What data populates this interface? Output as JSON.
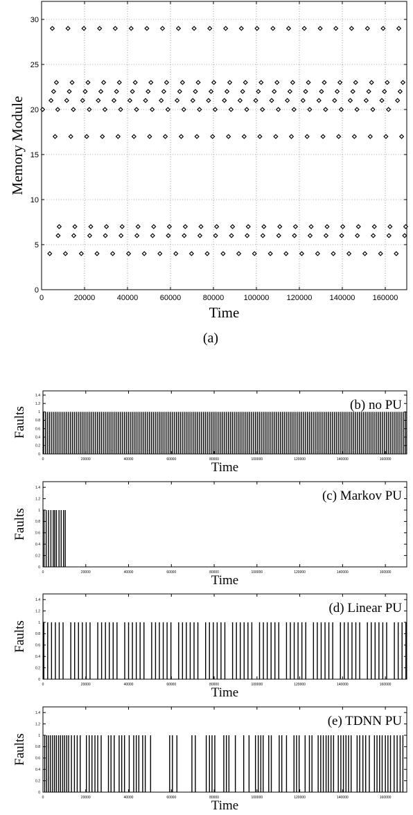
{
  "caption_a": "(a)",
  "chart_data": [
    {
      "type": "scatter",
      "id": "a",
      "xlabel": "Time",
      "ylabel": "Memory Module",
      "xlim": [
        0,
        170000
      ],
      "ylim": [
        0,
        32
      ],
      "xticks": [
        0,
        20000,
        40000,
        60000,
        80000,
        100000,
        120000,
        140000,
        160000
      ],
      "yticks": [
        0,
        5,
        10,
        15,
        20,
        25,
        30
      ],
      "grid": true,
      "marker": "diamond",
      "series": [
        {
          "y": 29,
          "x": [
            5000,
            12300,
            19700,
            27000,
            34300,
            41700,
            49000,
            56300,
            63700,
            71000,
            78300,
            85700,
            93000,
            100300,
            107700,
            115000,
            122300,
            129700,
            137000,
            144300,
            151700,
            159000,
            166300
          ]
        },
        {
          "y": 23,
          "x": [
            6900,
            14200,
            21600,
            28900,
            36200,
            43600,
            50900,
            58200,
            65600,
            72900,
            80200,
            87600,
            94900,
            102200,
            109600,
            116900,
            124200,
            131600,
            138900,
            146200,
            153600,
            160900,
            168200
          ]
        },
        {
          "y": 22,
          "x": [
            5600,
            12900,
            20300,
            27600,
            34900,
            42300,
            49600,
            56900,
            64300,
            71600,
            78900,
            86300,
            93600,
            100900,
            108300,
            115600,
            122900,
            130300,
            137600,
            144900,
            152300,
            159600,
            166900
          ]
        },
        {
          "y": 21,
          "x": [
            4400,
            11700,
            19100,
            26400,
            33700,
            41100,
            48400,
            55700,
            63100,
            70400,
            77700,
            85100,
            92400,
            99700,
            107100,
            114400,
            121700,
            129100,
            136400,
            143700,
            151100,
            158400,
            165700
          ]
        },
        {
          "y": 20,
          "x": [
            500,
            7500,
            14800,
            22200,
            29500,
            36800,
            44200,
            51500,
            58800,
            66200,
            73500,
            80800,
            88200,
            95500,
            102800,
            110200,
            117500,
            124800,
            132200,
            139500,
            146800,
            154200,
            161500
          ]
        },
        {
          "y": 17,
          "x": [
            6300,
            13600,
            21000,
            28300,
            35600,
            43000,
            50300,
            57600,
            65000,
            72300,
            79600,
            87000,
            94300,
            101600,
            109000,
            116300,
            123600,
            131000,
            138300,
            145600,
            153000,
            160300,
            167600
          ]
        },
        {
          "y": 7,
          "x": [
            8200,
            15500,
            22900,
            30200,
            37500,
            44900,
            52200,
            59500,
            66900,
            74200,
            81500,
            88900,
            96200,
            103500,
            110900,
            118200,
            125500,
            132900,
            140200,
            147500,
            154900,
            162200,
            169500
          ]
        },
        {
          "y": 6,
          "x": [
            7700,
            15000,
            22400,
            29700,
            37000,
            44400,
            51700,
            59000,
            66400,
            73700,
            81000,
            88400,
            95700,
            103000,
            110400,
            117700,
            125000,
            132400,
            139700,
            147000,
            154400,
            161700,
            169000
          ]
        },
        {
          "y": 4,
          "x": [
            3800,
            11100,
            18500,
            25800,
            33100,
            40500,
            47800,
            55100,
            62500,
            69800,
            77100,
            84500,
            91800,
            99100,
            106500,
            113800,
            121100,
            128500,
            135800,
            143100,
            150500,
            157800,
            165100
          ]
        }
      ]
    },
    {
      "type": "bar",
      "id": "b",
      "title": "(b) no PU",
      "xlabel": "Time",
      "ylabel": "Faults",
      "xlim": [
        0,
        170000
      ],
      "ylim": [
        0,
        1.5
      ],
      "xticks": [
        0,
        20000,
        40000,
        60000,
        80000,
        100000,
        120000,
        140000,
        160000
      ],
      "yticks": [
        0,
        0.2,
        0.4,
        0.6,
        0.8,
        1,
        1.2,
        1.4
      ],
      "fault_value": 1,
      "fault_times": "all module accesses (dense, approx. every 900 time units from 0 to 170000)"
    },
    {
      "type": "bar",
      "id": "c",
      "title": "(c) Markov PU",
      "xlabel": "Time",
      "ylabel": "Faults",
      "xlim": [
        0,
        170000
      ],
      "ylim": [
        0,
        1.5
      ],
      "xticks": [
        0,
        20000,
        40000,
        60000,
        80000,
        100000,
        120000,
        140000,
        160000
      ],
      "yticks": [
        0,
        0.2,
        0.4,
        0.6,
        0.8,
        1,
        1.2,
        1.4
      ],
      "fault_value": 1,
      "fault_times": [
        500,
        1500,
        2600,
        3700,
        4800,
        5500,
        6300,
        7500,
        8500,
        9600,
        10400
      ]
    },
    {
      "type": "bar",
      "id": "d",
      "title": "(d) Linear PU",
      "xlabel": "Time",
      "ylabel": "Faults",
      "xlim": [
        0,
        170000
      ],
      "ylim": [
        0,
        1.5
      ],
      "xticks": [
        0,
        20000,
        40000,
        60000,
        80000,
        100000,
        120000,
        140000,
        160000
      ],
      "yticks": [
        0,
        0.2,
        0.4,
        0.6,
        0.8,
        1,
        1.2,
        1.4
      ],
      "fault_value": 1,
      "fault_times": "regular (approx. every 1800 time units, with occasional gaps, from 0 to 170000)"
    },
    {
      "type": "bar",
      "id": "e",
      "title": "(e) TDNN PU",
      "xlabel": "Time",
      "ylabel": "Faults",
      "xlim": [
        0,
        170000
      ],
      "ylim": [
        0,
        1.5
      ],
      "xticks": [
        0,
        20000,
        40000,
        60000,
        80000,
        100000,
        120000,
        140000,
        160000
      ],
      "yticks": [
        0,
        0.2,
        0.4,
        0.6,
        0.8,
        1,
        1.2,
        1.4
      ],
      "fault_value": 1,
      "fault_times": [
        800,
        1700,
        2600,
        3500,
        4500,
        5400,
        6300,
        7300,
        8200,
        9200,
        10100,
        11100,
        12000,
        13300,
        14700,
        16000,
        17400,
        20300,
        21600,
        22900,
        24300,
        25600,
        27200,
        30600,
        31800,
        33300,
        35600,
        36800,
        38100,
        40300,
        42400,
        43600,
        44800,
        46600,
        47800,
        50300,
        59200,
        60500,
        62600,
        69600,
        71200,
        76300,
        77800,
        79000,
        80300,
        84500,
        85700,
        86900,
        89900,
        93800,
        96300,
        99300,
        100600,
        101800,
        102900,
        105500,
        106700,
        110400,
        111600,
        113800,
        117300,
        118500,
        119700,
        122500,
        124500,
        125700,
        128600,
        129800,
        131000,
        132300,
        133400,
        134600,
        135800,
        138000,
        139200,
        140400,
        141600,
        142800,
        144000,
        146800,
        148000,
        149500,
        150800,
        152500,
        154900,
        156100,
        157300,
        158500,
        160000,
        161200,
        162400,
        164100,
        165500,
        166900,
        168200
      ]
    }
  ]
}
